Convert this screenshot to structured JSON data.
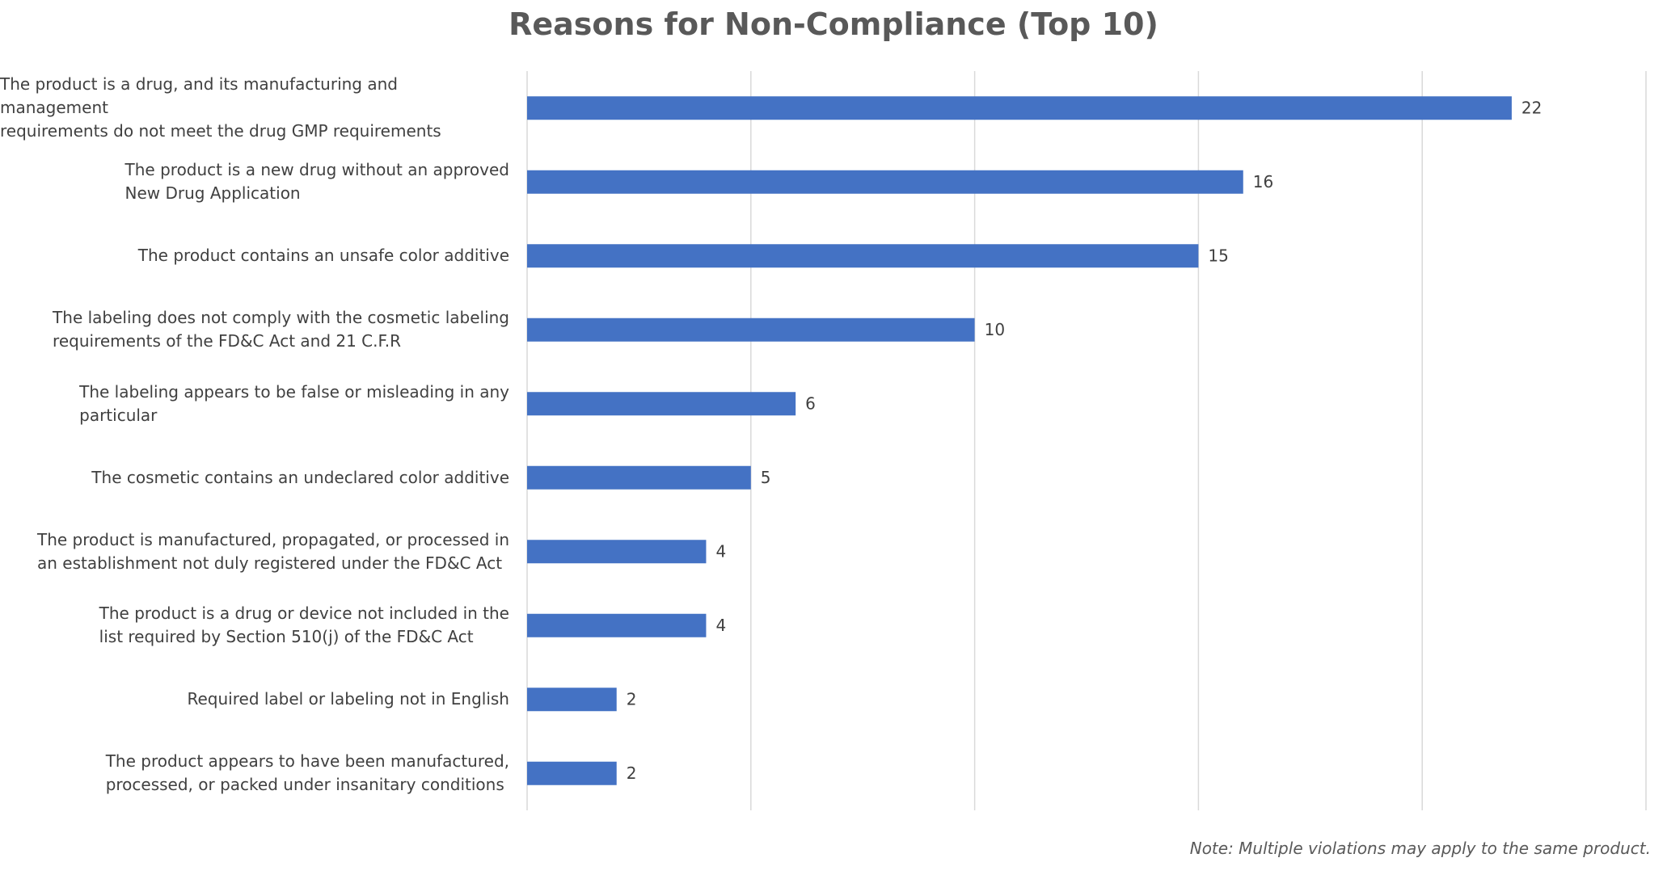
{
  "chart_data": {
    "type": "bar",
    "orientation": "horizontal",
    "title": "Reasons for Non-Compliance (Top 10)",
    "categories": [
      "The product is a drug, and its manufacturing and management\nrequirements do not meet the drug GMP requirements",
      "The product is a new drug without an approved\nNew Drug Application",
      "The product contains an unsafe color additive",
      "The labeling does not comply with the cosmetic labeling\nrequirements of the FD&C Act and 21 C.F.R",
      "The labeling appears to be false or misleading in any\nparticular",
      "The cosmetic contains an undeclared color additive",
      "The product is manufactured, propagated, or processed in\nan establishment not duly registered under the FD&C Act",
      "The product is a drug or device not included in the\nlist required by Section 510(j) of the FD&C Act",
      "Required label or labeling not in English",
      "The product appears to have been manufactured,\nprocessed, or packed under insanitary conditions"
    ],
    "values": [
      22,
      16,
      15,
      10,
      6,
      5,
      4,
      4,
      2,
      2
    ],
    "color": "#4472c4",
    "xlim": [
      0,
      25
    ],
    "xticks": [
      0,
      5,
      10,
      15,
      20,
      25
    ],
    "grid": true,
    "note": "Note: Multiple violations may apply to the same product."
  }
}
